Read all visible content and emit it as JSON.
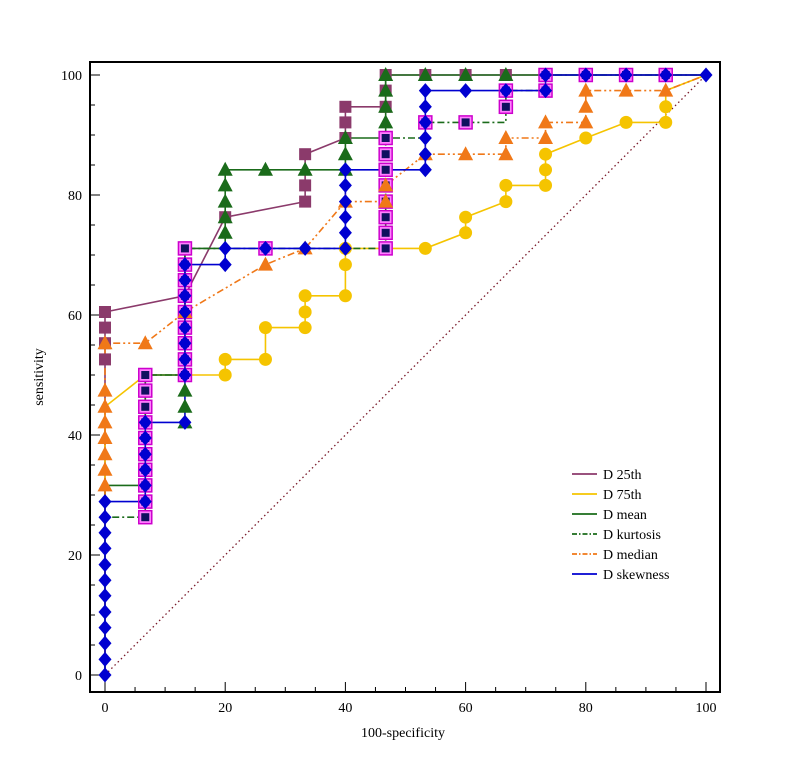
{
  "chart_data": {
    "type": "line",
    "title": "",
    "xlabel": "100-specificity",
    "ylabel": "sensitivity",
    "xlim": [
      0,
      100
    ],
    "ylim": [
      0,
      100
    ],
    "x_ticks": [
      0,
      20,
      40,
      60,
      80,
      100
    ],
    "y_ticks": [
      0,
      20,
      40,
      60,
      80,
      100
    ],
    "grid": false,
    "legend": "lower-right",
    "reference_line": {
      "from": [
        0,
        0
      ],
      "to": [
        100,
        100
      ],
      "color": "#7a1a2a",
      "style": "dotted"
    },
    "series": [
      {
        "name": "D 25th",
        "color": "#8b3a6b",
        "marker": "square",
        "dash": "solid",
        "curve": [
          [
            0,
            0
          ],
          [
            0,
            60.5
          ],
          [
            13.3,
            63.2
          ],
          [
            20,
            76.3
          ],
          [
            33.3,
            78.9
          ],
          [
            33.3,
            86.8
          ],
          [
            40,
            89.5
          ],
          [
            40,
            94.7
          ],
          [
            46.7,
            94.7
          ],
          [
            46.7,
            100
          ],
          [
            100,
            100
          ]
        ],
        "points": [
          [
            0,
            52.6
          ],
          [
            0,
            55.3
          ],
          [
            0,
            57.9
          ],
          [
            0,
            60.5
          ],
          [
            13.3,
            63.2
          ],
          [
            20,
            76.3
          ],
          [
            33.3,
            78.9
          ],
          [
            33.3,
            81.6
          ],
          [
            33.3,
            86.8
          ],
          [
            40,
            89.5
          ],
          [
            40,
            92.1
          ],
          [
            40,
            94.7
          ],
          [
            46.7,
            94.7
          ],
          [
            46.7,
            97.4
          ],
          [
            46.7,
            100
          ],
          [
            53.3,
            100
          ],
          [
            60,
            100
          ],
          [
            66.7,
            100
          ]
        ]
      },
      {
        "name": "D 75th",
        "color": "#f5c400",
        "marker": "circle",
        "dash": "solid",
        "curve": [
          [
            0,
            0
          ],
          [
            0,
            44.7
          ],
          [
            6.7,
            50
          ],
          [
            20,
            50
          ],
          [
            20,
            52.6
          ],
          [
            26.7,
            52.6
          ],
          [
            26.7,
            57.9
          ],
          [
            33.3,
            57.9
          ],
          [
            33.3,
            63.2
          ],
          [
            40,
            63.2
          ],
          [
            40,
            71.1
          ],
          [
            53.3,
            71.1
          ],
          [
            60,
            73.7
          ],
          [
            60,
            76.3
          ],
          [
            66.7,
            78.9
          ],
          [
            66.7,
            81.6
          ],
          [
            73.3,
            81.6
          ],
          [
            73.3,
            86.8
          ],
          [
            80,
            89.5
          ],
          [
            86.7,
            92.1
          ],
          [
            93.3,
            92.1
          ],
          [
            93.3,
            97.4
          ],
          [
            100,
            100
          ]
        ],
        "points": [
          [
            20,
            50
          ],
          [
            20,
            52.6
          ],
          [
            26.7,
            52.6
          ],
          [
            26.7,
            57.9
          ],
          [
            33.3,
            57.9
          ],
          [
            33.3,
            60.5
          ],
          [
            33.3,
            63.2
          ],
          [
            40,
            63.2
          ],
          [
            40,
            68.4
          ],
          [
            40,
            71.1
          ],
          [
            53.3,
            71.1
          ],
          [
            60,
            73.7
          ],
          [
            60,
            76.3
          ],
          [
            66.7,
            78.9
          ],
          [
            66.7,
            81.6
          ],
          [
            73.3,
            81.6
          ],
          [
            73.3,
            84.2
          ],
          [
            73.3,
            86.8
          ],
          [
            80,
            89.5
          ],
          [
            86.7,
            92.1
          ],
          [
            93.3,
            92.1
          ],
          [
            93.3,
            94.7
          ]
        ]
      },
      {
        "name": "D mean",
        "color": "#1a6b1a",
        "marker": "triangle",
        "dash": "solid",
        "curve": [
          [
            0,
            0
          ],
          [
            0,
            31.6
          ],
          [
            6.7,
            31.6
          ],
          [
            6.7,
            50
          ],
          [
            13.3,
            50
          ],
          [
            13.3,
            71.1
          ],
          [
            20,
            71.1
          ],
          [
            20,
            84.2
          ],
          [
            40,
            84.2
          ],
          [
            40,
            89.5
          ],
          [
            46.7,
            89.5
          ],
          [
            46.7,
            100
          ],
          [
            100,
            100
          ]
        ],
        "points": [
          [
            13.3,
            42.1
          ],
          [
            13.3,
            44.7
          ],
          [
            13.3,
            47.4
          ],
          [
            20,
            73.7
          ],
          [
            20,
            76.3
          ],
          [
            20,
            78.9
          ],
          [
            20,
            81.6
          ],
          [
            20,
            84.2
          ],
          [
            26.7,
            84.2
          ],
          [
            33.3,
            84.2
          ],
          [
            40,
            84.2
          ],
          [
            40,
            86.8
          ],
          [
            40,
            89.5
          ],
          [
            46.7,
            92.1
          ],
          [
            46.7,
            94.7
          ],
          [
            46.7,
            97.4
          ],
          [
            46.7,
            100
          ],
          [
            53.3,
            100
          ],
          [
            60,
            100
          ],
          [
            66.7,
            100
          ]
        ]
      },
      {
        "name": "D kurtosis",
        "color": "#1a6b1a",
        "marker": "navy-square-magenta",
        "dash": "dashdot",
        "curve": [
          [
            0,
            0
          ],
          [
            0,
            26.3
          ],
          [
            6.7,
            26.3
          ],
          [
            6.7,
            50
          ],
          [
            13.3,
            50
          ],
          [
            13.3,
            71.1
          ],
          [
            46.7,
            71.1
          ],
          [
            46.7,
            89.5
          ],
          [
            53.3,
            89.5
          ],
          [
            53.3,
            92.1
          ],
          [
            66.7,
            92.1
          ],
          [
            66.7,
            97.4
          ],
          [
            73.3,
            97.4
          ],
          [
            73.3,
            100
          ],
          [
            100,
            100
          ]
        ],
        "points": [
          [
            6.7,
            26.3
          ],
          [
            6.7,
            28.9
          ],
          [
            6.7,
            31.6
          ],
          [
            6.7,
            34.2
          ],
          [
            6.7,
            36.8
          ],
          [
            6.7,
            39.5
          ],
          [
            6.7,
            42.1
          ],
          [
            6.7,
            44.7
          ],
          [
            6.7,
            47.4
          ],
          [
            6.7,
            50
          ],
          [
            13.3,
            50
          ],
          [
            13.3,
            52.6
          ],
          [
            13.3,
            55.3
          ],
          [
            13.3,
            57.9
          ],
          [
            13.3,
            60.5
          ],
          [
            13.3,
            63.2
          ],
          [
            13.3,
            65.8
          ],
          [
            13.3,
            68.4
          ],
          [
            13.3,
            71.1
          ],
          [
            26.7,
            71.1
          ],
          [
            46.7,
            71.1
          ],
          [
            46.7,
            73.7
          ],
          [
            46.7,
            76.3
          ],
          [
            46.7,
            78.9
          ],
          [
            46.7,
            81.6
          ],
          [
            46.7,
            84.2
          ],
          [
            46.7,
            86.8
          ],
          [
            46.7,
            89.5
          ],
          [
            53.3,
            92.1
          ],
          [
            60,
            92.1
          ],
          [
            66.7,
            94.7
          ],
          [
            66.7,
            97.4
          ],
          [
            73.3,
            97.4
          ],
          [
            73.3,
            100
          ],
          [
            80,
            100
          ],
          [
            86.7,
            100
          ],
          [
            93.3,
            100
          ]
        ]
      },
      {
        "name": "D median",
        "color": "#f07818",
        "marker": "triangle",
        "dash": "dashdotdot",
        "curve": [
          [
            0,
            0
          ],
          [
            0,
            55.3
          ],
          [
            6.7,
            55.3
          ],
          [
            13.3,
            60.5
          ],
          [
            26.7,
            68.4
          ],
          [
            33.3,
            71.1
          ],
          [
            40,
            78.9
          ],
          [
            46.7,
            78.9
          ],
          [
            46.7,
            81.6
          ],
          [
            53.3,
            86.8
          ],
          [
            60,
            86.8
          ],
          [
            66.7,
            86.8
          ],
          [
            66.7,
            89.5
          ],
          [
            73.3,
            89.5
          ],
          [
            73.3,
            92.1
          ],
          [
            80,
            92.1
          ],
          [
            80,
            97.4
          ],
          [
            93.3,
            97.4
          ],
          [
            100,
            100
          ]
        ],
        "points": [
          [
            0,
            31.6
          ],
          [
            0,
            34.2
          ],
          [
            0,
            36.8
          ],
          [
            0,
            39.5
          ],
          [
            0,
            42.1
          ],
          [
            0,
            44.7
          ],
          [
            0,
            47.4
          ],
          [
            0,
            55.3
          ],
          [
            6.7,
            55.3
          ],
          [
            13.3,
            60.5
          ],
          [
            26.7,
            68.4
          ],
          [
            33.3,
            71.1
          ],
          [
            40,
            78.9
          ],
          [
            46.7,
            78.9
          ],
          [
            46.7,
            81.6
          ],
          [
            53.3,
            86.8
          ],
          [
            60,
            86.8
          ],
          [
            66.7,
            86.8
          ],
          [
            66.7,
            89.5
          ],
          [
            73.3,
            89.5
          ],
          [
            73.3,
            92.1
          ],
          [
            80,
            92.1
          ],
          [
            80,
            94.7
          ],
          [
            80,
            97.4
          ],
          [
            86.7,
            97.4
          ],
          [
            93.3,
            97.4
          ]
        ]
      },
      {
        "name": "D skewness",
        "color": "#0000d0",
        "marker": "diamond",
        "dash": "solid",
        "curve": [
          [
            0,
            0
          ],
          [
            0,
            28.9
          ],
          [
            6.7,
            28.9
          ],
          [
            6.7,
            42.1
          ],
          [
            13.3,
            42.1
          ],
          [
            13.3,
            68.4
          ],
          [
            20,
            68.4
          ],
          [
            20,
            71.1
          ],
          [
            40,
            71.1
          ],
          [
            40,
            84.2
          ],
          [
            53.3,
            84.2
          ],
          [
            53.3,
            97.4
          ],
          [
            73.3,
            97.4
          ],
          [
            73.3,
            100
          ],
          [
            100,
            100
          ]
        ],
        "points": [
          [
            0,
            0
          ],
          [
            0,
            2.6
          ],
          [
            0,
            5.3
          ],
          [
            0,
            7.9
          ],
          [
            0,
            10.5
          ],
          [
            0,
            13.2
          ],
          [
            0,
            15.8
          ],
          [
            0,
            18.4
          ],
          [
            0,
            21.1
          ],
          [
            0,
            23.7
          ],
          [
            0,
            26.3
          ],
          [
            0,
            28.9
          ],
          [
            6.7,
            28.9
          ],
          [
            6.7,
            31.6
          ],
          [
            6.7,
            34.2
          ],
          [
            6.7,
            36.8
          ],
          [
            6.7,
            39.5
          ],
          [
            6.7,
            42.1
          ],
          [
            13.3,
            42.1
          ],
          [
            13.3,
            50
          ],
          [
            13.3,
            52.6
          ],
          [
            13.3,
            55.3
          ],
          [
            13.3,
            57.9
          ],
          [
            13.3,
            60.5
          ],
          [
            13.3,
            63.2
          ],
          [
            13.3,
            65.8
          ],
          [
            13.3,
            68.4
          ],
          [
            20,
            68.4
          ],
          [
            20,
            71.1
          ],
          [
            26.7,
            71.1
          ],
          [
            33.3,
            71.1
          ],
          [
            40,
            71.1
          ],
          [
            40,
            73.7
          ],
          [
            40,
            76.3
          ],
          [
            40,
            78.9
          ],
          [
            40,
            81.6
          ],
          [
            40,
            84.2
          ],
          [
            53.3,
            84.2
          ],
          [
            53.3,
            86.8
          ],
          [
            53.3,
            89.5
          ],
          [
            53.3,
            92.1
          ],
          [
            53.3,
            94.7
          ],
          [
            53.3,
            97.4
          ],
          [
            60,
            97.4
          ],
          [
            66.7,
            97.4
          ],
          [
            73.3,
            97.4
          ],
          [
            73.3,
            100
          ],
          [
            80,
            100
          ],
          [
            86.7,
            100
          ],
          [
            93.3,
            100
          ],
          [
            100,
            100
          ]
        ]
      }
    ]
  }
}
